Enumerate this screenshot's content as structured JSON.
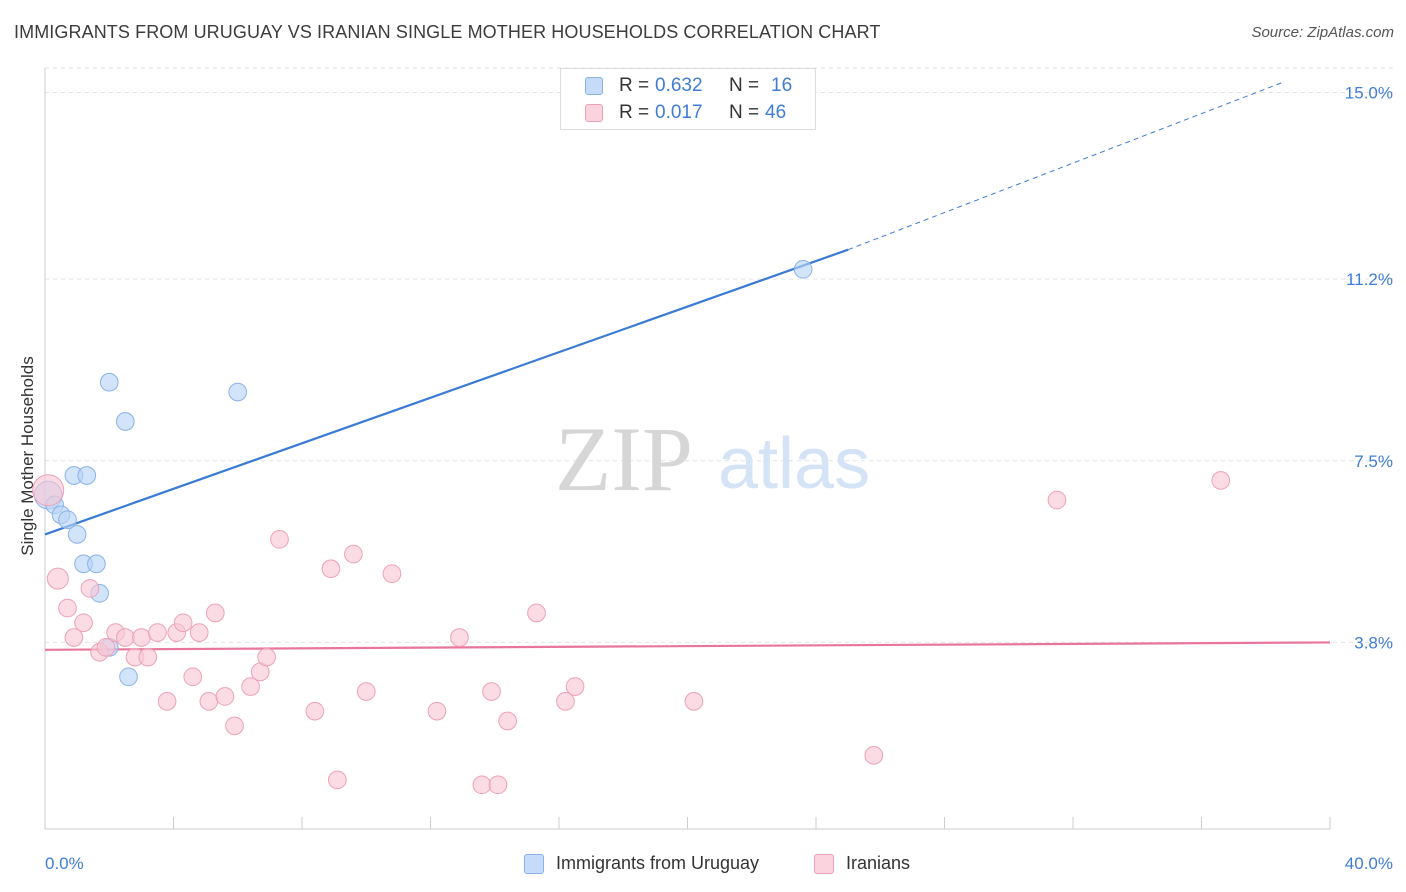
{
  "header": {
    "title": "IMMIGRANTS FROM URUGUAY VS IRANIAN SINGLE MOTHER HOUSEHOLDS CORRELATION CHART",
    "source": "Source: ZipAtlas.com"
  },
  "watermark": {
    "zip": "ZIP",
    "atlas": "atlas"
  },
  "legend_top": {
    "rows": [
      {
        "r_label": "R =",
        "r_value": "0.632",
        "n_label": "N =",
        "n_value": "16",
        "color": "#b7d3f6"
      },
      {
        "r_label": "R =",
        "r_value": "0.017",
        "n_label": "N =",
        "n_value": "46",
        "color": "#f9c6d5"
      }
    ]
  },
  "legend_bottom": {
    "items": [
      {
        "label": "Immigrants from Uruguay",
        "color": "#b7d3f6"
      },
      {
        "label": "Iranians",
        "color": "#f9c6d5"
      }
    ]
  },
  "chart_data": {
    "type": "scatter",
    "title": "IMMIGRANTS FROM URUGUAY VS IRANIAN SINGLE MOTHER HOUSEHOLDS CORRELATION CHART",
    "xlabel": "",
    "ylabel": "Single Mother Households",
    "xlim": [
      0,
      40
    ],
    "ylim": [
      0,
      15.5
    ],
    "x_tick_labels": [
      "0.0%",
      "40.0%"
    ],
    "y_ticks": [
      3.8,
      7.5,
      11.2,
      15.0
    ],
    "y_tick_labels": [
      "3.8%",
      "7.5%",
      "11.2%",
      "15.0%"
    ],
    "grid": true,
    "accent_colors": {
      "uruguay": "#3a7bd5",
      "iranians": "#e8769a",
      "tick_text": "#3f7dd6"
    },
    "series": [
      {
        "name": "Immigrants from Uruguay",
        "color": "#b7d3f6",
        "stroke": "#8ab2e8",
        "trend": {
          "x0": 0,
          "y0": 6.0,
          "x1": 25,
          "y1": 11.8,
          "dash_to_x": 38.5,
          "dash_to_y": 15.2
        },
        "points": [
          [
            0.1,
            6.8,
            16
          ],
          [
            0.3,
            6.6,
            10
          ],
          [
            0.5,
            6.4,
            10
          ],
          [
            0.7,
            6.3,
            10
          ],
          [
            0.9,
            7.2,
            10
          ],
          [
            1.3,
            7.2,
            10
          ],
          [
            1.0,
            6.0,
            10
          ],
          [
            1.2,
            5.4,
            10
          ],
          [
            1.6,
            5.4,
            10
          ],
          [
            1.7,
            4.8,
            10
          ],
          [
            2.0,
            9.1,
            10
          ],
          [
            2.5,
            8.3,
            10
          ],
          [
            6.0,
            8.9,
            10
          ],
          [
            2.0,
            3.7,
            10
          ],
          [
            2.6,
            3.1,
            10
          ],
          [
            23.6,
            11.4,
            10
          ]
        ]
      },
      {
        "name": "Iranians",
        "color": "#f9c6d5",
        "stroke": "#eda1b8",
        "trend": {
          "x0": 0,
          "y0": 3.65,
          "x1": 40,
          "y1": 3.8
        },
        "points": [
          [
            0.1,
            6.9,
            18
          ],
          [
            0.4,
            5.1,
            12
          ],
          [
            0.7,
            4.5,
            10
          ],
          [
            0.9,
            3.9,
            10
          ],
          [
            1.2,
            4.2,
            10
          ],
          [
            1.4,
            4.9,
            10
          ],
          [
            1.7,
            3.6,
            10
          ],
          [
            1.9,
            3.7,
            10
          ],
          [
            2.2,
            4.0,
            10
          ],
          [
            2.5,
            3.9,
            10
          ],
          [
            2.8,
            3.5,
            10
          ],
          [
            3.0,
            3.9,
            10
          ],
          [
            3.2,
            3.5,
            10
          ],
          [
            3.5,
            4.0,
            10
          ],
          [
            3.8,
            2.6,
            10
          ],
          [
            4.1,
            4.0,
            10
          ],
          [
            4.3,
            4.2,
            10
          ],
          [
            4.6,
            3.1,
            10
          ],
          [
            4.8,
            4.0,
            10
          ],
          [
            5.1,
            2.6,
            10
          ],
          [
            5.3,
            4.4,
            10
          ],
          [
            5.6,
            2.7,
            10
          ],
          [
            5.9,
            2.1,
            10
          ],
          [
            6.4,
            2.9,
            10
          ],
          [
            6.7,
            3.2,
            10
          ],
          [
            6.9,
            3.5,
            10
          ],
          [
            7.3,
            5.9,
            10
          ],
          [
            8.4,
            2.4,
            10
          ],
          [
            8.9,
            5.3,
            10
          ],
          [
            9.1,
            1.0,
            10
          ],
          [
            9.6,
            5.6,
            10
          ],
          [
            10.0,
            2.8,
            10
          ],
          [
            10.8,
            5.2,
            10
          ],
          [
            12.2,
            2.4,
            10
          ],
          [
            12.9,
            3.9,
            10
          ],
          [
            13.6,
            0.9,
            10
          ],
          [
            13.9,
            2.8,
            10
          ],
          [
            14.1,
            0.9,
            10
          ],
          [
            14.4,
            2.2,
            10
          ],
          [
            15.3,
            4.4,
            10
          ],
          [
            16.2,
            2.6,
            10
          ],
          [
            16.5,
            2.9,
            10
          ],
          [
            20.2,
            2.6,
            10
          ],
          [
            25.8,
            1.5,
            10
          ],
          [
            31.5,
            6.7,
            10
          ],
          [
            36.6,
            7.1,
            10
          ]
        ]
      }
    ]
  }
}
